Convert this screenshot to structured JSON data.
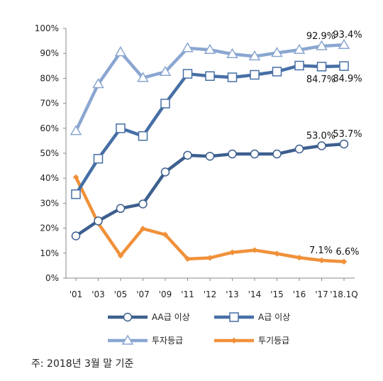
{
  "chart_data": {
    "type": "line",
    "categories": [
      "'01",
      "'03",
      "'05",
      "'07",
      "'09",
      "'11",
      "'12",
      "'13",
      "'14",
      "'15",
      "'16",
      "'17",
      "'18.1Q"
    ],
    "ylim": [
      0,
      100
    ],
    "y_ticks": [
      "0%",
      "10%",
      "20%",
      "30%",
      "40%",
      "50%",
      "60%",
      "70%",
      "80%",
      "90%",
      "100%"
    ],
    "grid": false,
    "legend_position": "bottom",
    "series": [
      {
        "name": "AA급 이상",
        "color": "#3d5f8e",
        "marker": "circle",
        "values": [
          16.9,
          22.9,
          27.9,
          29.7,
          42.5,
          49.2,
          48.8,
          49.7,
          49.7,
          49.7,
          51.7,
          53.0,
          53.7
        ]
      },
      {
        "name": "A급 이상",
        "color": "#466fa5",
        "marker": "square",
        "values": [
          33.6,
          47.8,
          60.0,
          56.9,
          69.9,
          81.8,
          80.9,
          80.4,
          81.4,
          82.7,
          85.1,
          84.7,
          84.9
        ]
      },
      {
        "name": "투자등급",
        "color": "#8aa6d1",
        "marker": "triangle",
        "values": [
          58.9,
          77.7,
          90.5,
          80.2,
          82.6,
          92.1,
          91.4,
          89.7,
          88.8,
          90.2,
          91.4,
          92.9,
          93.4
        ]
      },
      {
        "name": "투기등급",
        "color": "#f0913a",
        "marker": "diamond",
        "values": [
          40.4,
          22.0,
          9.0,
          19.8,
          17.4,
          7.7,
          8.1,
          10.3,
          11.2,
          9.8,
          8.2,
          7.1,
          6.6
        ]
      }
    ],
    "data_labels": [
      {
        "series": 2,
        "index": 11,
        "text": "92.9%"
      },
      {
        "series": 2,
        "index": 12,
        "text": "93.4%"
      },
      {
        "series": 1,
        "index": 11,
        "text": "84.7%"
      },
      {
        "series": 1,
        "index": 12,
        "text": "84.9%"
      },
      {
        "series": 0,
        "index": 11,
        "text": "53.0%"
      },
      {
        "series": 0,
        "index": 12,
        "text": "53.7%"
      },
      {
        "series": 3,
        "index": 11,
        "text": "7.1%"
      },
      {
        "series": 3,
        "index": 12,
        "text": "6.6%"
      }
    ]
  },
  "footnote": "주: 2018년 3월 말 기준"
}
